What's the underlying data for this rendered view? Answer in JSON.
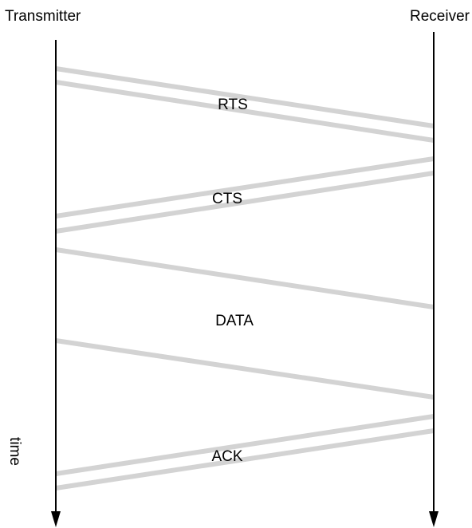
{
  "diagram": {
    "transmitter_label": "Transmitter",
    "receiver_label": "Receiver",
    "time_label": "time",
    "band_color": "#d3d3d3",
    "line_color": "#000000",
    "messages": [
      {
        "label": "RTS",
        "direction": "transmitter-to-receiver"
      },
      {
        "label": "CTS",
        "direction": "receiver-to-transmitter"
      },
      {
        "label": "DATA",
        "direction": "transmitter-to-receiver"
      },
      {
        "label": "ACK",
        "direction": "receiver-to-transmitter"
      }
    ]
  }
}
